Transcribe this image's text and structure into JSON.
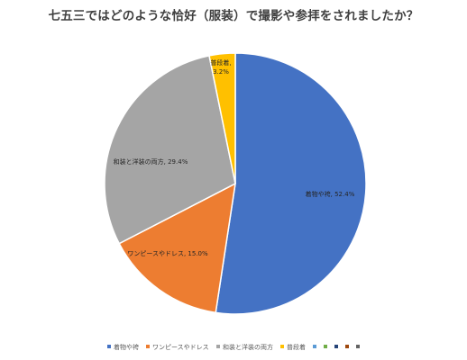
{
  "chart_data": {
    "type": "pie",
    "title": "七五三ではどのような恰好（服装）で撮影や参拝をされましたか？",
    "slices": [
      {
        "label": "着物や袴",
        "value": 52.4,
        "value_label": "52.4%",
        "color": "#4472C4"
      },
      {
        "label": "ワンピースやドレス",
        "value": 15.0,
        "value_label": "15.0%",
        "color": "#ED7D31"
      },
      {
        "label": "和装と洋装の両方",
        "value": 29.4,
        "value_label": "29.4%",
        "color": "#A5A5A5"
      },
      {
        "label": "普段着",
        "value": 3.2,
        "value_label": "3.2%",
        "color": "#FFC000"
      }
    ],
    "legend": {
      "position": "bottom",
      "entries": [
        {
          "label": "着物や袴",
          "color": "#4472C4"
        },
        {
          "label": "ワンピースやドレス",
          "color": "#ED7D31"
        },
        {
          "label": "和装と洋装の両方",
          "color": "#A5A5A5"
        },
        {
          "label": "普段着",
          "color": "#FFC000"
        },
        {
          "label": "",
          "color": "#5B9BD5"
        },
        {
          "label": "",
          "color": "#70AD47"
        },
        {
          "label": "",
          "color": "#264478"
        },
        {
          "label": "",
          "color": "#9E480E"
        },
        {
          "label": "",
          "color": "#636363"
        }
      ]
    }
  }
}
